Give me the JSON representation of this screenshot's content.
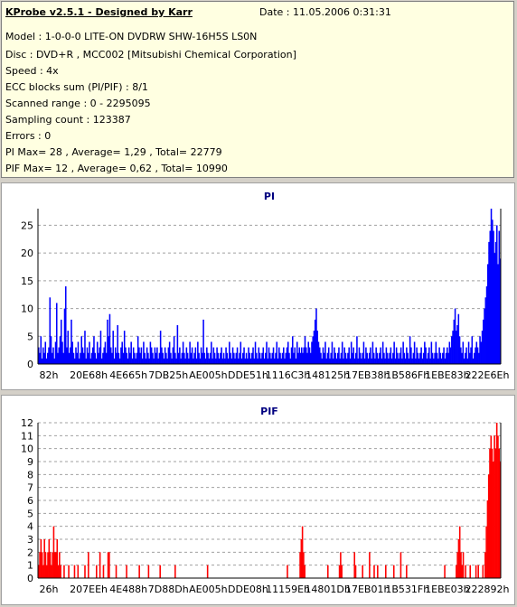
{
  "header": {
    "app_title": "KProbe v2.5.1 - Designed by Karr",
    "date": "Date : 11.05.2006 0:31:31",
    "lines": [
      "Model : 1-0-0-0 LITE-ON DVDRW SHW-16H5S  LS0N",
      "Disc : DVD+R , MCC002 [Mitsubishi Chemical Corporation]",
      "Speed : 4x",
      "ECC blocks sum (PI/PIF) : 8/1",
      "Scanned range : 0 - 2295095",
      "Sampling count : 123387",
      "Errors : 0",
      "PI Max= 28 , Average= 1,29 , Total= 22779",
      "PIF Max= 12 , Average= 0,62 , Total= 10990"
    ]
  },
  "colors": {
    "pi": "#0000ff",
    "pif": "#ff0000",
    "title": "#000080"
  },
  "chart_data": [
    {
      "type": "bar",
      "title": "PI",
      "ylim": [
        0,
        28
      ],
      "yticks": [
        0,
        5,
        10,
        15,
        20,
        25
      ],
      "grid": true,
      "xticks": [
        "82h",
        "20E68h",
        "4E665h",
        "7DB25h",
        "AE005h",
        "DDE51h",
        "1116C3h",
        "148125h",
        "17EB38h",
        "1B586Fh",
        "1EBE83h",
        "222E6Eh"
      ],
      "series": [
        {
          "values": [
            3,
            2,
            5,
            1,
            3,
            2,
            4,
            1,
            2,
            3,
            12,
            5,
            2,
            3,
            1,
            4,
            11,
            2,
            3,
            5,
            8,
            4,
            2,
            10,
            14,
            3,
            6,
            2,
            3,
            8,
            4,
            2,
            1,
            3,
            2,
            4,
            1,
            2,
            5,
            3,
            2,
            6,
            1,
            3,
            2,
            4,
            1,
            2,
            3,
            5,
            2,
            1,
            4,
            2,
            3,
            6,
            1,
            2,
            3,
            4,
            2,
            8,
            5,
            9,
            3,
            2,
            6,
            1,
            3,
            2,
            7,
            2,
            1,
            3,
            4,
            2,
            6,
            3,
            2,
            1,
            3,
            2,
            4,
            1,
            3,
            2,
            1,
            2,
            5,
            3,
            2,
            3,
            1,
            4,
            2,
            1,
            3,
            2,
            1,
            4,
            3,
            2,
            1,
            3,
            2,
            3,
            1,
            2,
            6,
            3,
            2,
            1,
            3,
            2,
            1,
            3,
            4,
            2,
            1,
            3,
            5,
            2,
            1,
            7,
            2,
            3,
            1,
            2,
            4,
            2,
            1,
            3,
            2,
            1,
            4,
            2,
            3,
            1,
            2,
            3,
            1,
            4,
            2,
            1,
            3,
            2,
            8,
            2,
            1,
            3,
            2,
            1,
            2,
            4,
            1,
            3,
            2,
            1,
            3,
            2,
            1,
            2,
            3,
            1,
            2,
            1,
            3,
            2,
            1,
            4,
            2,
            1,
            3,
            2,
            1,
            2,
            3,
            1,
            2,
            4,
            1,
            2,
            3,
            1,
            2,
            1,
            3,
            2,
            1,
            2,
            3,
            1,
            4,
            2,
            1,
            3,
            2,
            1,
            2,
            3,
            1,
            2,
            4,
            1,
            3,
            2,
            1,
            2,
            3,
            1,
            2,
            4,
            1,
            3,
            2,
            1,
            2,
            3,
            1,
            2,
            3,
            4,
            2,
            1,
            3,
            5,
            2,
            3,
            1,
            4,
            2,
            3,
            2,
            3,
            2,
            3,
            5,
            3,
            2,
            4,
            3,
            2,
            4,
            5,
            6,
            8,
            10,
            6,
            4,
            3,
            2,
            1,
            3,
            2,
            4,
            1,
            2,
            3,
            1,
            2,
            4,
            1,
            3,
            2,
            1,
            2,
            3,
            1,
            2,
            4,
            1,
            3,
            2,
            1,
            2,
            3,
            1,
            4,
            2,
            3,
            1,
            2,
            5,
            1,
            3,
            2,
            1,
            2,
            4,
            1,
            3,
            2,
            1,
            2,
            3,
            1,
            4,
            2,
            1,
            3,
            2,
            1,
            2,
            3,
            1,
            4,
            2,
            1,
            3,
            2,
            1,
            2,
            3,
            1,
            2,
            4,
            1,
            3,
            2,
            1,
            2,
            3,
            1,
            4,
            2,
            1,
            3,
            2,
            1,
            5,
            3,
            1,
            2,
            4,
            1,
            3,
            2,
            1,
            2,
            3,
            1,
            2,
            4,
            3,
            1,
            2,
            3,
            1,
            4,
            2,
            1,
            2,
            4,
            2,
            1,
            3,
            2,
            1,
            2,
            3,
            1,
            2,
            3,
            2,
            4,
            3,
            5,
            6,
            8,
            10,
            6,
            7,
            9,
            5,
            3,
            2,
            4,
            1,
            2,
            3,
            1,
            4,
            2,
            3,
            5,
            1,
            2,
            3,
            4,
            3,
            2,
            5,
            4,
            6,
            8,
            10,
            12,
            14,
            18,
            22,
            24,
            28,
            26,
            24,
            20,
            22,
            25,
            18,
            24,
            19
          ]
        }
      ]
    },
    {
      "type": "bar",
      "title": "PIF",
      "ylim": [
        0,
        12
      ],
      "yticks": [
        0,
        1,
        2,
        3,
        4,
        5,
        6,
        7,
        8,
        9,
        10,
        11,
        12
      ],
      "grid": true,
      "xticks": [
        "26h",
        "207EEh",
        "4E488h",
        "7D88Dh",
        "AE005h",
        "DDE08h",
        "11159Eh",
        "14801Dh",
        "17EB01h",
        "1B531Fh",
        "1EBE03h",
        "222892h"
      ],
      "series": [
        {
          "values": [
            1,
            2,
            3,
            2,
            1,
            3,
            2,
            1,
            2,
            3,
            2,
            1,
            2,
            4,
            2,
            2,
            3,
            1,
            2,
            1,
            0,
            0,
            1,
            0,
            0,
            0,
            1,
            0,
            0,
            0,
            0,
            1,
            0,
            0,
            1,
            0,
            0,
            0,
            0,
            0,
            1,
            0,
            0,
            2,
            0,
            0,
            0,
            0,
            0,
            0,
            1,
            0,
            0,
            2,
            0,
            0,
            1,
            0,
            0,
            0,
            2,
            2,
            0,
            0,
            0,
            0,
            0,
            1,
            0,
            0,
            0,
            0,
            0,
            0,
            0,
            0,
            1,
            0,
            0,
            0,
            0,
            0,
            0,
            0,
            0,
            0,
            0,
            1,
            0,
            0,
            0,
            0,
            0,
            0,
            0,
            1,
            0,
            0,
            0,
            0,
            0,
            0,
            0,
            0,
            0,
            1,
            0,
            0,
            0,
            0,
            0,
            0,
            0,
            0,
            0,
            0,
            0,
            0,
            1,
            0,
            0,
            0,
            0,
            0,
            0,
            0,
            0,
            0,
            0,
            0,
            0,
            0,
            0,
            0,
            0,
            0,
            0,
            0,
            0,
            0,
            0,
            0,
            0,
            0,
            0,
            0,
            1,
            0,
            0,
            0,
            0,
            0,
            0,
            0,
            0,
            0,
            0,
            0,
            0,
            0,
            0,
            0,
            0,
            0,
            0,
            0,
            0,
            0,
            0,
            0,
            0,
            0,
            0,
            0,
            0,
            0,
            0,
            0,
            0,
            0,
            0,
            0,
            0,
            0,
            0,
            0,
            0,
            0,
            0,
            0,
            0,
            0,
            0,
            0,
            0,
            0,
            0,
            0,
            0,
            0,
            0,
            0,
            0,
            0,
            0,
            0,
            0,
            0,
            0,
            0,
            0,
            0,
            0,
            0,
            0,
            1,
            0,
            0,
            0,
            0,
            0,
            0,
            0,
            0,
            0,
            0,
            2,
            3,
            4,
            2,
            1,
            0,
            0,
            0,
            0,
            0,
            0,
            0,
            0,
            0,
            0,
            0,
            0,
            0,
            0,
            0,
            0,
            0,
            0,
            0,
            1,
            0,
            0,
            0,
            0,
            0,
            0,
            0,
            0,
            0,
            1,
            2,
            1,
            0,
            0,
            0,
            0,
            0,
            0,
            0,
            0,
            0,
            0,
            2,
            1,
            0,
            0,
            0,
            0,
            0,
            1,
            0,
            0,
            0,
            0,
            0,
            2,
            0,
            0,
            0,
            1,
            0,
            0,
            1,
            0,
            0,
            0,
            0,
            0,
            0,
            1,
            0,
            0,
            0,
            0,
            0,
            0,
            1,
            0,
            0,
            0,
            0,
            0,
            2,
            0,
            0,
            0,
            0,
            1,
            0,
            0,
            0,
            0,
            0,
            0,
            0,
            0,
            0,
            0,
            0,
            0,
            0,
            0,
            0,
            0,
            0,
            0,
            0,
            0,
            0,
            0,
            0,
            0,
            0,
            0,
            0,
            0,
            0,
            0,
            0,
            0,
            1,
            0,
            0,
            0,
            0,
            0,
            0,
            0,
            0,
            0,
            1,
            2,
            3,
            4,
            2,
            1,
            2,
            0,
            1,
            0,
            0,
            0,
            1,
            0,
            0,
            0,
            0,
            1,
            0,
            1,
            0,
            0,
            0,
            1,
            0,
            2,
            4,
            6,
            8,
            10,
            11,
            10,
            9,
            11,
            10,
            12,
            11,
            10,
            9
          ]
        }
      ]
    }
  ]
}
